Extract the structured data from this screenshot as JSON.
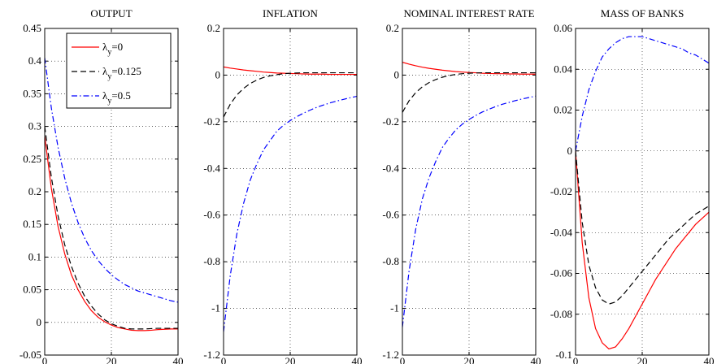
{
  "chart_data": [
    {
      "type": "line",
      "title": "OUTPUT",
      "xlim": [
        0,
        40
      ],
      "ylim": [
        -0.05,
        0.45
      ],
      "xticks": [
        "0",
        "20",
        "40"
      ],
      "yticks": [
        "-0.05",
        "0",
        "0.05",
        "0.1",
        "0.15",
        "0.2",
        "0.25",
        "0.3",
        "0.35",
        "0.4",
        "0.45"
      ],
      "grid": true,
      "legend": "top-right",
      "x": [
        0,
        2,
        4,
        6,
        8,
        10,
        12,
        14,
        16,
        18,
        20,
        22,
        24,
        26,
        28,
        30,
        32,
        34,
        36,
        38,
        40
      ],
      "series": [
        {
          "legend_base": "λ",
          "legend_sub": "y",
          "legend_value": "=0",
          "color": "#ff0000",
          "dash": "solid",
          "values": [
            0.285,
            0.205,
            0.147,
            0.105,
            0.073,
            0.05,
            0.032,
            0.018,
            0.008,
            0.001,
            -0.004,
            -0.008,
            -0.01,
            -0.012,
            -0.0125,
            -0.0125,
            -0.012,
            -0.011,
            -0.0105,
            -0.01,
            -0.01
          ]
        },
        {
          "legend_base": "λ",
          "legend_sub": "y",
          "legend_value": "=0.125",
          "color": "#000000",
          "dash": "dashed",
          "values": [
            0.3,
            0.222,
            0.163,
            0.119,
            0.086,
            0.06,
            0.04,
            0.025,
            0.013,
            0.004,
            -0.002,
            -0.006,
            -0.009,
            -0.01,
            -0.01,
            -0.01,
            -0.0095,
            -0.009,
            -0.009,
            -0.009,
            -0.009
          ]
        },
        {
          "legend_base": "λ",
          "legend_sub": "y",
          "legend_value": "=0.5",
          "color": "#0000ff",
          "dash": "dashdot",
          "values": [
            0.405,
            0.328,
            0.268,
            0.221,
            0.183,
            0.153,
            0.129,
            0.11,
            0.095,
            0.083,
            0.073,
            0.065,
            0.058,
            0.053,
            0.048,
            0.045,
            0.042,
            0.039,
            0.036,
            0.033,
            0.031
          ]
        }
      ]
    },
    {
      "type": "line",
      "title": "INFLATION",
      "xlim": [
        0,
        40
      ],
      "ylim": [
        -1.2,
        0.2
      ],
      "xticks": [
        "0",
        "20",
        "40"
      ],
      "yticks": [
        "-1.2",
        "-1",
        "-0.8",
        "-0.6",
        "-0.4",
        "-0.2",
        "0",
        "0.2"
      ],
      "grid": true,
      "x": [
        0,
        2,
        4,
        6,
        8,
        10,
        12,
        14,
        16,
        18,
        20,
        22,
        24,
        26,
        28,
        30,
        32,
        34,
        36,
        38,
        40
      ],
      "series": [
        {
          "color": "#ff0000",
          "dash": "solid",
          "values": [
            0.035,
            0.03,
            0.026,
            0.022,
            0.019,
            0.016,
            0.013,
            0.011,
            0.009,
            0.008,
            0.007,
            0.006,
            0.005,
            0.004,
            0.004,
            0.004,
            0.003,
            0.003,
            0.003,
            0.003,
            0.003
          ]
        },
        {
          "color": "#000000",
          "dash": "dashed",
          "values": [
            -0.18,
            -0.125,
            -0.085,
            -0.057,
            -0.036,
            -0.021,
            -0.01,
            -0.003,
            0.002,
            0.006,
            0.008,
            0.009,
            0.01,
            0.01,
            0.01,
            0.01,
            0.01,
            0.01,
            0.01,
            0.01,
            0.01
          ]
        },
        {
          "color": "#0000ff",
          "dash": "dashdot",
          "values": [
            -1.1,
            -0.86,
            -0.68,
            -0.55,
            -0.45,
            -0.38,
            -0.32,
            -0.28,
            -0.24,
            -0.215,
            -0.195,
            -0.178,
            -0.163,
            -0.15,
            -0.138,
            -0.128,
            -0.119,
            -0.111,
            -0.104,
            -0.097,
            -0.091
          ]
        }
      ]
    },
    {
      "type": "line",
      "title": "NOMINAL INTEREST RATE",
      "xlim": [
        0,
        40
      ],
      "ylim": [
        -1.2,
        0.2
      ],
      "xticks": [
        "0",
        "20",
        "40"
      ],
      "yticks": [
        "-1.2",
        "-1",
        "-0.8",
        "-0.6",
        "-0.4",
        "-0.2",
        "0",
        "0.2"
      ],
      "grid": true,
      "x": [
        0,
        2,
        4,
        6,
        8,
        10,
        12,
        14,
        16,
        18,
        20,
        22,
        24,
        26,
        28,
        30,
        32,
        34,
        36,
        38,
        40
      ],
      "series": [
        {
          "color": "#ff0000",
          "dash": "solid",
          "values": [
            0.055,
            0.047,
            0.04,
            0.034,
            0.029,
            0.025,
            0.021,
            0.018,
            0.015,
            0.013,
            0.011,
            0.01,
            0.008,
            0.007,
            0.006,
            0.006,
            0.005,
            0.005,
            0.004,
            0.004,
            0.004
          ]
        },
        {
          "color": "#000000",
          "dash": "dashed",
          "values": [
            -0.16,
            -0.11,
            -0.075,
            -0.05,
            -0.032,
            -0.019,
            -0.009,
            -0.002,
            0.003,
            0.006,
            0.008,
            0.009,
            0.01,
            0.01,
            0.01,
            0.01,
            0.01,
            0.01,
            0.01,
            0.01,
            0.01
          ]
        },
        {
          "color": "#0000ff",
          "dash": "dashdot",
          "values": [
            -1.08,
            -0.84,
            -0.66,
            -0.53,
            -0.44,
            -0.37,
            -0.31,
            -0.27,
            -0.235,
            -0.21,
            -0.19,
            -0.173,
            -0.158,
            -0.146,
            -0.135,
            -0.125,
            -0.117,
            -0.109,
            -0.102,
            -0.096,
            -0.09
          ]
        }
      ]
    },
    {
      "type": "line",
      "title": "MASS OF BANKS",
      "xlim": [
        0,
        40
      ],
      "ylim": [
        -0.1,
        0.06
      ],
      "xticks": [
        "0",
        "20",
        "40"
      ],
      "yticks": [
        "-0.1",
        "-0.08",
        "-0.06",
        "-0.04",
        "-0.02",
        "0",
        "0.02",
        "0.04",
        "0.06"
      ],
      "grid": true,
      "x": [
        0,
        2,
        4,
        6,
        8,
        10,
        12,
        14,
        16,
        18,
        20,
        22,
        24,
        26,
        28,
        30,
        32,
        34,
        36,
        38,
        40
      ],
      "series": [
        {
          "color": "#ff0000",
          "dash": "solid",
          "values": [
            0.0,
            -0.045,
            -0.072,
            -0.087,
            -0.094,
            -0.097,
            -0.096,
            -0.092,
            -0.087,
            -0.081,
            -0.075,
            -0.069,
            -0.063,
            -0.058,
            -0.053,
            -0.048,
            -0.044,
            -0.04,
            -0.036,
            -0.033,
            -0.03
          ]
        },
        {
          "color": "#000000",
          "dash": "dashed",
          "values": [
            0.0,
            -0.035,
            -0.056,
            -0.067,
            -0.073,
            -0.075,
            -0.074,
            -0.071,
            -0.067,
            -0.063,
            -0.059,
            -0.055,
            -0.051,
            -0.047,
            -0.043,
            -0.04,
            -0.037,
            -0.034,
            -0.031,
            -0.029,
            -0.027
          ]
        },
        {
          "color": "#0000ff",
          "dash": "dashdot",
          "values": [
            0.0,
            0.017,
            0.03,
            0.039,
            0.046,
            0.05,
            0.053,
            0.055,
            0.056,
            0.056,
            0.056,
            0.055,
            0.054,
            0.053,
            0.052,
            0.051,
            0.05,
            0.048,
            0.047,
            0.045,
            0.043
          ]
        }
      ]
    }
  ]
}
